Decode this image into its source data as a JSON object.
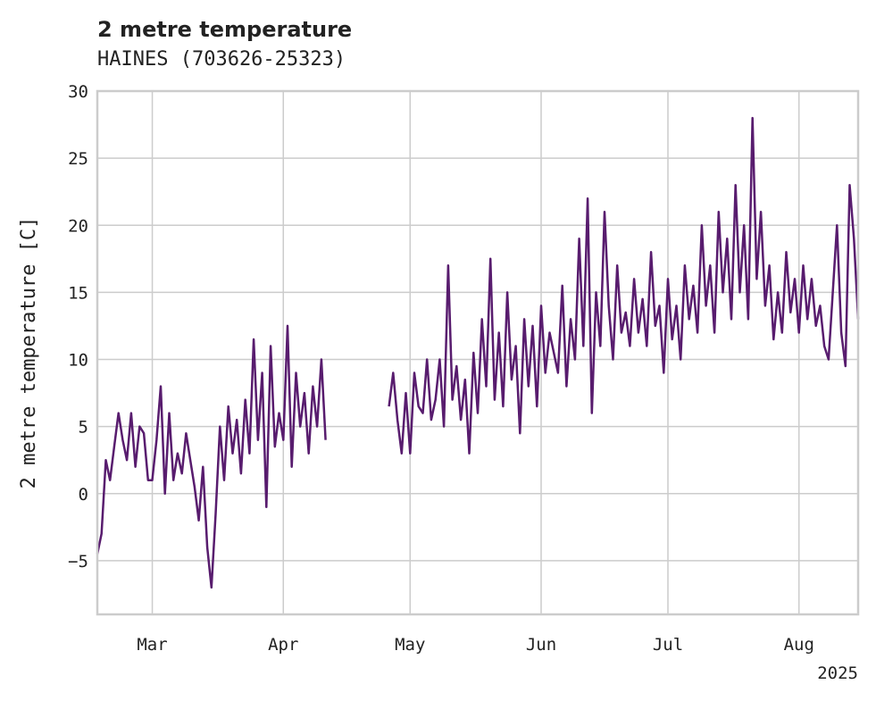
{
  "chart_data": {
    "type": "line",
    "title": "2 metre temperature",
    "subtitle": "HAINES (703626-25323)",
    "ylabel": "2 metre temperature [C]",
    "xlabel": "",
    "year_label": "2025",
    "ylim": [
      -9,
      30
    ],
    "xlim": [
      "2025-02-16",
      "2025-08-15"
    ],
    "yticks": [
      -5,
      0,
      5,
      10,
      15,
      20,
      25,
      30
    ],
    "ytick_labels": [
      "−5",
      "0",
      "5",
      "10",
      "15",
      "20",
      "25",
      "30"
    ],
    "xticks": [
      "2025-03-01",
      "2025-04-01",
      "2025-05-01",
      "2025-06-01",
      "2025-07-01",
      "2025-08-01"
    ],
    "xtick_labels": [
      "Mar",
      "Apr",
      "May",
      "Jun",
      "Jul",
      "Aug"
    ],
    "grid": true,
    "legend": "none",
    "line_color": "#581c6e",
    "series": [
      {
        "segments": [
          {
            "x": [
              "2025-02-16",
              "2025-02-17",
              "2025-02-18",
              "2025-02-19",
              "2025-02-20",
              "2025-02-21",
              "2025-02-22",
              "2025-02-23",
              "2025-02-24",
              "2025-02-25",
              "2025-02-26",
              "2025-02-27",
              "2025-02-28",
              "2025-03-01",
              "2025-03-02",
              "2025-03-03",
              "2025-03-04",
              "2025-03-05",
              "2025-03-06",
              "2025-03-07",
              "2025-03-08",
              "2025-03-09",
              "2025-03-10",
              "2025-03-11",
              "2025-03-12",
              "2025-03-13",
              "2025-03-14",
              "2025-03-15",
              "2025-03-16",
              "2025-03-17",
              "2025-03-18",
              "2025-03-19",
              "2025-03-20",
              "2025-03-21",
              "2025-03-22",
              "2025-03-23",
              "2025-03-24",
              "2025-03-25",
              "2025-03-26",
              "2025-03-27",
              "2025-03-28",
              "2025-03-29",
              "2025-03-30",
              "2025-03-31",
              "2025-04-01",
              "2025-04-02",
              "2025-04-03",
              "2025-04-04",
              "2025-04-05",
              "2025-04-06",
              "2025-04-07",
              "2025-04-08",
              "2025-04-09",
              "2025-04-10",
              "2025-04-11"
            ],
            "y": [
              -4.5,
              -3.0,
              2.5,
              1.0,
              3.5,
              6.0,
              4.0,
              2.5,
              6.0,
              2.0,
              5.0,
              4.5,
              1.0,
              1.0,
              4.0,
              8.0,
              0.0,
              6.0,
              1.0,
              3.0,
              1.5,
              4.5,
              2.5,
              0.5,
              -2.0,
              2.0,
              -4.0,
              -7.0,
              -1.5,
              5.0,
              1.0,
              6.5,
              3.0,
              5.5,
              1.5,
              7.0,
              3.0,
              11.5,
              4.0,
              9.0,
              -1.0,
              11.0,
              3.5,
              6.0,
              4.0,
              12.5,
              2.0,
              9.0,
              5.0,
              7.5,
              3.0,
              8.0,
              5.0,
              10.0,
              4.0
            ]
          },
          {
            "x": [
              "2025-04-26",
              "2025-04-27",
              "2025-04-28",
              "2025-04-29",
              "2025-04-30",
              "2025-05-01",
              "2025-05-02",
              "2025-05-03",
              "2025-05-04",
              "2025-05-05",
              "2025-05-06",
              "2025-05-07",
              "2025-05-08",
              "2025-05-09",
              "2025-05-10",
              "2025-05-11",
              "2025-05-12",
              "2025-05-13",
              "2025-05-14",
              "2025-05-15",
              "2025-05-16",
              "2025-05-17",
              "2025-05-18",
              "2025-05-19",
              "2025-05-20",
              "2025-05-21",
              "2025-05-22",
              "2025-05-23",
              "2025-05-24",
              "2025-05-25",
              "2025-05-26",
              "2025-05-27",
              "2025-05-28",
              "2025-05-29",
              "2025-05-30",
              "2025-05-31",
              "2025-06-01",
              "2025-06-02",
              "2025-06-03",
              "2025-06-04",
              "2025-06-05",
              "2025-06-06",
              "2025-06-07",
              "2025-06-08",
              "2025-06-09",
              "2025-06-10",
              "2025-06-11",
              "2025-06-12",
              "2025-06-13",
              "2025-06-14",
              "2025-06-15",
              "2025-06-16",
              "2025-06-17",
              "2025-06-18",
              "2025-06-19",
              "2025-06-20",
              "2025-06-21",
              "2025-06-22",
              "2025-06-23",
              "2025-06-24",
              "2025-06-25",
              "2025-06-26",
              "2025-06-27",
              "2025-06-28",
              "2025-06-29",
              "2025-06-30",
              "2025-07-01",
              "2025-07-02",
              "2025-07-03",
              "2025-07-04",
              "2025-07-05",
              "2025-07-06",
              "2025-07-07",
              "2025-07-08",
              "2025-07-09",
              "2025-07-10",
              "2025-07-11",
              "2025-07-12",
              "2025-07-13",
              "2025-07-14",
              "2025-07-15",
              "2025-07-16",
              "2025-07-17",
              "2025-07-18",
              "2025-07-19",
              "2025-07-20",
              "2025-07-21",
              "2025-07-22",
              "2025-07-23",
              "2025-07-24",
              "2025-07-25",
              "2025-07-26",
              "2025-07-27",
              "2025-07-28",
              "2025-07-29",
              "2025-07-30",
              "2025-07-31",
              "2025-08-01",
              "2025-08-02",
              "2025-08-03",
              "2025-08-04",
              "2025-08-05",
              "2025-08-06",
              "2025-08-07",
              "2025-08-08",
              "2025-08-09",
              "2025-08-10",
              "2025-08-11",
              "2025-08-12",
              "2025-08-13",
              "2025-08-14",
              "2025-08-15"
            ],
            "y": [
              6.5,
              9.0,
              5.5,
              3.0,
              7.5,
              3.0,
              9.0,
              6.5,
              6.0,
              10.0,
              5.5,
              7.0,
              10.0,
              5.0,
              17.0,
              7.0,
              9.5,
              5.5,
              8.5,
              3.0,
              10.5,
              6.0,
              13.0,
              8.0,
              17.5,
              7.0,
              12.0,
              6.5,
              15.0,
              8.5,
              11.0,
              4.5,
              13.0,
              8.0,
              12.5,
              6.5,
              14.0,
              9.0,
              12.0,
              10.5,
              9.0,
              15.5,
              8.0,
              13.0,
              10.0,
              19.0,
              11.0,
              22.0,
              6.0,
              15.0,
              11.0,
              21.0,
              14.0,
              10.0,
              17.0,
              12.0,
              13.5,
              11.0,
              16.0,
              12.0,
              14.5,
              11.0,
              18.0,
              12.5,
              14.0,
              9.0,
              16.0,
              11.5,
              14.0,
              10.0,
              17.0,
              13.0,
              15.5,
              12.0,
              20.0,
              14.0,
              17.0,
              12.0,
              21.0,
              15.0,
              19.0,
              13.0,
              23.0,
              15.0,
              20.0,
              13.0,
              28.0,
              16.0,
              21.0,
              14.0,
              17.0,
              11.5,
              15.0,
              12.0,
              18.0,
              13.5,
              16.0,
              12.0,
              17.0,
              13.0,
              16.0,
              12.5,
              14.0,
              11.0,
              10.0,
              15.0,
              20.0,
              12.0,
              9.5,
              23.0,
              19.0,
              13.0
            ]
          }
        ]
      }
    ]
  }
}
